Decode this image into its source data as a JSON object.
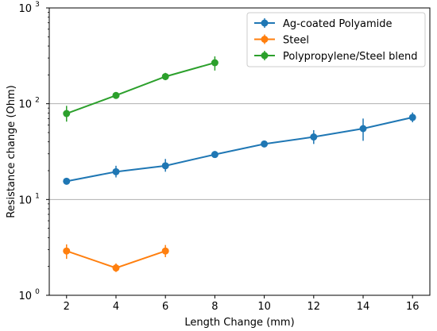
{
  "chart_data": {
    "type": "line",
    "title": "",
    "xlabel": "Length Change (mm)",
    "ylabel": "Resistance change (Ohm)",
    "xlim": [
      1.3,
      16.7
    ],
    "ylim": [
      1,
      1000
    ],
    "yscale": "log",
    "xticks": [
      2,
      4,
      6,
      8,
      10,
      12,
      14,
      16
    ],
    "xtick_labels": [
      "2",
      "4",
      "6",
      "8",
      "10",
      "12",
      "14",
      "16"
    ],
    "yticks": [
      1,
      10,
      100,
      1000
    ],
    "ytick_labels": [
      {
        "base": "10",
        "exp": "0"
      },
      {
        "base": "10",
        "exp": "1"
      },
      {
        "base": "10",
        "exp": "2"
      },
      {
        "base": "10",
        "exp": "3"
      }
    ],
    "grid": {
      "y_major": true,
      "x": false
    },
    "legend_position": "top-right",
    "series": [
      {
        "name": "Ag-coated Polyamide",
        "color": "#1f77b4",
        "x": [
          2,
          4,
          6,
          8,
          10,
          12,
          14,
          16
        ],
        "y": [
          15.5,
          19.5,
          22.5,
          29.5,
          38,
          45,
          55,
          72
        ],
        "yerr_low": [
          14.5,
          17,
          19.5,
          27.5,
          36,
          38,
          41,
          64
        ],
        "yerr_high": [
          16.5,
          22.5,
          26.5,
          32,
          40,
          53,
          70,
          81
        ]
      },
      {
        "name": "Steel",
        "color": "#ff7f0e",
        "x": [
          2,
          4,
          6
        ],
        "y": [
          2.9,
          1.93,
          2.9
        ],
        "yerr_low": [
          2.4,
          1.75,
          2.5
        ],
        "yerr_high": [
          3.4,
          2.15,
          3.35
        ]
      },
      {
        "name": "Polypropylene/Steel blend",
        "color": "#2ca02c",
        "x": [
          2,
          4,
          6,
          8
        ],
        "y": [
          79,
          122,
          192,
          268
        ],
        "yerr_low": [
          65,
          113,
          176,
          222
        ],
        "yerr_high": [
          95,
          131,
          210,
          312
        ]
      }
    ]
  }
}
